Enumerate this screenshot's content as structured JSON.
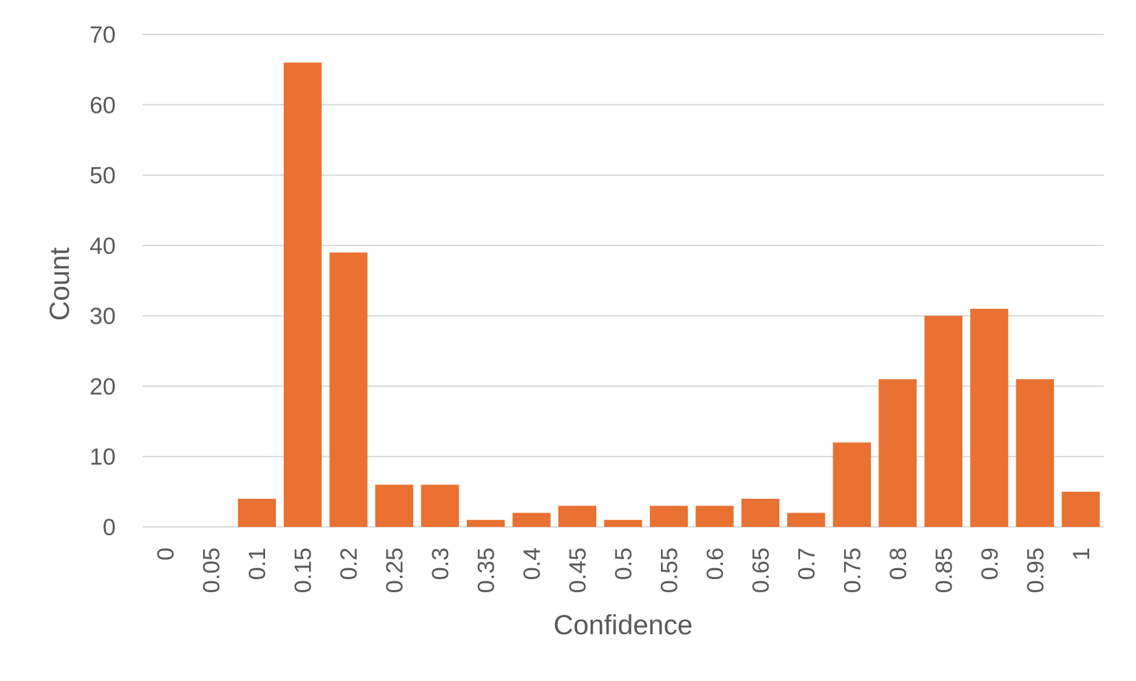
{
  "chart_data": {
    "type": "bar",
    "title": "",
    "xlabel": "Confidence",
    "ylabel": "Count",
    "categories": [
      "0",
      "0.05",
      "0.1",
      "0.15",
      "0.2",
      "0.25",
      "0.3",
      "0.35",
      "0.4",
      "0.45",
      "0.5",
      "0.55",
      "0.6",
      "0.65",
      "0.7",
      "0.75",
      "0.8",
      "0.85",
      "0.9",
      "0.95",
      "1"
    ],
    "values": [
      0,
      0,
      4,
      66,
      39,
      6,
      6,
      1,
      2,
      3,
      1,
      3,
      3,
      4,
      2,
      12,
      21,
      30,
      31,
      21,
      5
    ],
    "ylim": [
      0,
      70
    ],
    "yticks": [
      0,
      10,
      20,
      30,
      40,
      50,
      60,
      70
    ],
    "grid": true,
    "legend": "none",
    "bar_color": "#E97132",
    "grid_color": "#D9D9D9",
    "text_color": "#595959"
  }
}
